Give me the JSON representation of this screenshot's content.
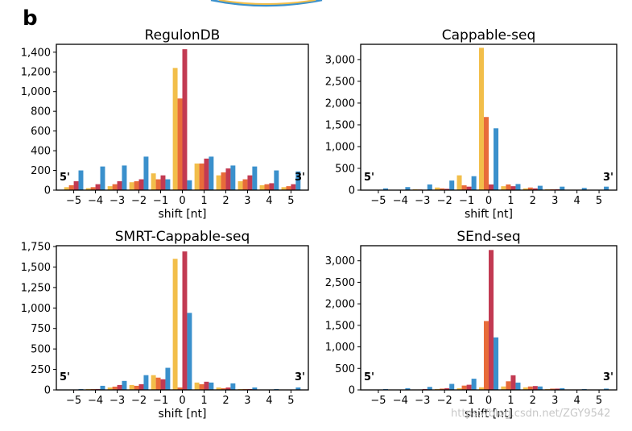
{
  "panel_label": "b",
  "watermark": "https://blog.csdn.net/ZGY9542",
  "colors": {
    "series_a": "#f2be4a",
    "series_b": "#e86b3a",
    "series_c": "#c23a52",
    "series_d": "#3a90cc"
  },
  "chart_data": [
    {
      "type": "bar",
      "title": "RegulonDB",
      "xlabel": "shift [nt]",
      "ylabel": "",
      "categories": [
        "−5",
        "−4",
        "−3",
        "−2",
        "−1",
        "0",
        "1",
        "2",
        "3",
        "4",
        "5"
      ],
      "ylim": [
        0,
        1480
      ],
      "yticks": [
        0,
        200,
        400,
        600,
        800,
        1000,
        1200,
        1400
      ],
      "end_left": "5'",
      "end_right": "3'",
      "series": [
        {
          "color": "#f2be4a",
          "values": [
            30,
            20,
            40,
            80,
            170,
            1240,
            270,
            150,
            90,
            50,
            30
          ]
        },
        {
          "color": "#e86b3a",
          "values": [
            50,
            30,
            60,
            90,
            110,
            930,
            270,
            180,
            110,
            60,
            40
          ]
        },
        {
          "color": "#c23a52",
          "values": [
            90,
            60,
            90,
            110,
            150,
            1430,
            320,
            220,
            150,
            70,
            60
          ]
        },
        {
          "color": "#3a90cc",
          "values": [
            200,
            240,
            250,
            340,
            110,
            100,
            340,
            250,
            240,
            200,
            190
          ]
        }
      ]
    },
    {
      "type": "bar",
      "title": "Cappable-seq",
      "xlabel": "shift [nt]",
      "ylabel": "",
      "categories": [
        "−5",
        "−4",
        "−3",
        "−2",
        "−1",
        "0",
        "1",
        "2",
        "3",
        "4",
        "5"
      ],
      "ylim": [
        0,
        3350
      ],
      "yticks": [
        0,
        500,
        1000,
        1500,
        2000,
        2500,
        3000
      ],
      "end_left": "5'",
      "end_right": "3'",
      "series": [
        {
          "color": "#f2be4a",
          "values": [
            5,
            5,
            20,
            60,
            340,
            3270,
            90,
            40,
            20,
            10,
            5
          ]
        },
        {
          "color": "#e86b3a",
          "values": [
            5,
            5,
            15,
            40,
            110,
            1680,
            130,
            60,
            20,
            10,
            5
          ]
        },
        {
          "color": "#c23a52",
          "values": [
            5,
            5,
            10,
            30,
            80,
            130,
            90,
            40,
            20,
            10,
            5
          ]
        },
        {
          "color": "#3a90cc",
          "values": [
            40,
            70,
            130,
            220,
            320,
            1420,
            140,
            100,
            80,
            50,
            80
          ]
        }
      ]
    },
    {
      "type": "bar",
      "title": "SMRT-Cappable-seq",
      "xlabel": "shift [nt]",
      "ylabel": "",
      "categories": [
        "−5",
        "−4",
        "−3",
        "−2",
        "−1",
        "0",
        "1",
        "2",
        "3",
        "4",
        "5"
      ],
      "ylim": [
        0,
        1760
      ],
      "yticks": [
        0,
        250,
        500,
        750,
        1000,
        1250,
        1500,
        1750
      ],
      "end_left": "5'",
      "end_right": "3'",
      "series": [
        {
          "color": "#f2be4a",
          "values": [
            5,
            10,
            30,
            60,
            180,
            1600,
            90,
            30,
            10,
            5,
            5
          ]
        },
        {
          "color": "#e86b3a",
          "values": [
            5,
            10,
            40,
            50,
            150,
            30,
            70,
            20,
            10,
            5,
            5
          ]
        },
        {
          "color": "#c23a52",
          "values": [
            5,
            10,
            60,
            70,
            130,
            1690,
            100,
            30,
            10,
            5,
            5
          ]
        },
        {
          "color": "#3a90cc",
          "values": [
            10,
            50,
            110,
            180,
            270,
            940,
            90,
            80,
            30,
            10,
            30
          ]
        }
      ]
    },
    {
      "type": "bar",
      "title": "SEnd-seq",
      "xlabel": "shift [nt]",
      "ylabel": "",
      "categories": [
        "−5",
        "−4",
        "−3",
        "−2",
        "−1",
        "0",
        "1",
        "2",
        "3",
        "4",
        "5"
      ],
      "ylim": [
        0,
        3350
      ],
      "yticks": [
        0,
        500,
        1000,
        1500,
        2000,
        2500,
        3000
      ],
      "end_left": "5'",
      "end_right": "3'",
      "series": [
        {
          "color": "#f2be4a",
          "values": [
            5,
            5,
            10,
            20,
            40,
            60,
            80,
            60,
            20,
            10,
            5
          ]
        },
        {
          "color": "#e86b3a",
          "values": [
            5,
            5,
            10,
            30,
            100,
            1600,
            200,
            80,
            30,
            10,
            5
          ]
        },
        {
          "color": "#c23a52",
          "values": [
            5,
            5,
            20,
            40,
            120,
            3250,
            340,
            90,
            30,
            10,
            5
          ]
        },
        {
          "color": "#3a90cc",
          "values": [
            20,
            40,
            70,
            140,
            260,
            1220,
            170,
            80,
            40,
            20,
            30
          ]
        }
      ]
    }
  ]
}
